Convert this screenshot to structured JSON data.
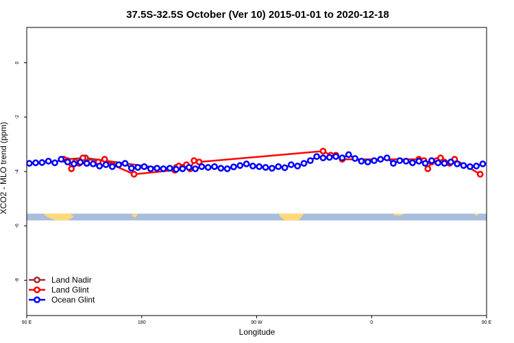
{
  "chart_data": {
    "type": "scatter",
    "title": "37.5S-32.5S October (Ver 10)   2015-01-01 to 2020-12-18",
    "xlabel": "Longitude",
    "ylabel": "XCO2 - MLO trend (ppm)",
    "xlim": [
      90,
      450
    ],
    "ylim": [
      -9.3,
      1.3
    ],
    "x_ticks": [
      {
        "value": 90,
        "label": "90 E"
      },
      {
        "value": 180,
        "label": "180"
      },
      {
        "value": 270,
        "label": "90 W"
      },
      {
        "value": 360,
        "label": "0"
      },
      {
        "value": 450,
        "label": "90 E"
      },
      {
        "value": 540,
        "label": "180"
      }
    ],
    "y_ticks": [
      {
        "value": 0,
        "label": "0"
      },
      {
        "value": -2,
        "label": "-2"
      },
      {
        "value": -4,
        "label": "-4"
      },
      {
        "value": -6,
        "label": "-6"
      },
      {
        "value": -8,
        "label": "-8"
      }
    ],
    "grid": false,
    "legend_position": "bottom-left",
    "map_band": {
      "y_top": -5.55,
      "y_bottom": -5.8,
      "ocean_color": "#a9bedc",
      "land_color": "#ffd97a"
    },
    "series": [
      {
        "name": "Land Nadir",
        "color": "#a52a2a",
        "x": [
          119,
          136,
          206,
          207
        ],
        "y": [
          -3.55,
          -3.5,
          -3.95,
          -3.85
        ]
      },
      {
        "name": "Land Glint",
        "color": "#ff0000",
        "x": [
          119,
          122,
          125,
          128,
          131,
          134,
          137,
          140,
          143,
          146,
          151,
          157,
          174,
          206,
          209,
          212,
          215,
          218,
          221,
          225,
          322,
          328,
          332,
          337,
          397,
          401,
          404,
          407,
          411,
          414,
          417,
          421,
          425,
          445
        ],
        "y": [
          -3.55,
          -3.6,
          -3.9,
          -3.65,
          -3.7,
          -3.5,
          -3.7,
          -3.65,
          -3.7,
          -3.65,
          -3.55,
          -3.75,
          -4.1,
          -3.95,
          -3.8,
          -3.85,
          -3.75,
          -3.9,
          -3.6,
          -3.65,
          -3.25,
          -3.4,
          -3.4,
          -3.55,
          -3.55,
          -3.6,
          -3.9,
          -3.65,
          -3.6,
          -3.5,
          -3.65,
          -3.7,
          -3.55,
          -4.1
        ]
      },
      {
        "name": "Ocean Glint",
        "color": "#0000ff",
        "x": [
          92,
          97,
          102,
          107,
          112,
          117,
          122,
          127,
          132,
          137,
          142,
          147,
          152,
          157,
          162,
          167,
          172,
          177,
          182,
          187,
          192,
          197,
          202,
          207,
          212,
          217,
          222,
          227,
          232,
          237,
          242,
          247,
          252,
          257,
          262,
          267,
          272,
          277,
          282,
          287,
          292,
          297,
          302,
          307,
          312,
          317,
          322,
          327,
          332,
          337,
          342,
          347,
          352,
          357,
          362,
          367,
          372,
          377,
          382,
          387,
          392,
          397,
          402,
          407,
          412,
          417,
          422,
          427,
          432,
          437,
          442,
          447
        ],
        "y": [
          -3.7,
          -3.68,
          -3.67,
          -3.62,
          -3.68,
          -3.55,
          -3.65,
          -3.72,
          -3.66,
          -3.7,
          -3.72,
          -3.8,
          -3.75,
          -3.82,
          -3.75,
          -3.7,
          -3.88,
          -3.85,
          -3.82,
          -3.9,
          -3.88,
          -3.9,
          -3.88,
          -3.92,
          -3.9,
          -3.85,
          -3.9,
          -3.82,
          -3.85,
          -3.82,
          -3.88,
          -3.9,
          -3.83,
          -3.78,
          -3.72,
          -3.8,
          -3.82,
          -3.85,
          -3.88,
          -3.82,
          -3.86,
          -3.75,
          -3.8,
          -3.7,
          -3.6,
          -3.45,
          -3.5,
          -3.48,
          -3.45,
          -3.5,
          -3.38,
          -3.52,
          -3.62,
          -3.65,
          -3.6,
          -3.55,
          -3.5,
          -3.7,
          -3.6,
          -3.62,
          -3.68,
          -3.62,
          -3.7,
          -3.6,
          -3.68,
          -3.7,
          -3.65,
          -3.72,
          -3.78,
          -3.82,
          -3.8,
          -3.72
        ]
      }
    ]
  }
}
